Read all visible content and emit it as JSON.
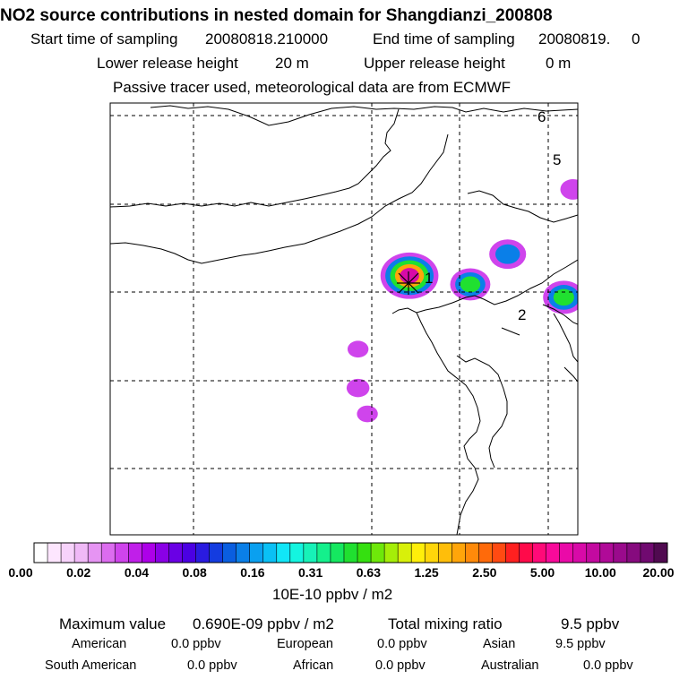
{
  "header": {
    "title": "NO2 source contributions in nested domain for Shangdianzi_200808",
    "start_label": "Start time of sampling",
    "start_value": "20080818.210000",
    "end_label": "End time of sampling",
    "end_value": "20080819.     0",
    "lower_label": "Lower release height",
    "lower_value": "20 m",
    "upper_label": "Upper release height",
    "upper_value": "0 m",
    "note": "Passive tracer used, meteorological data are from ECMWF"
  },
  "chart_data": {
    "type": "heatmap",
    "title": "NO2 source contributions in nested domain for Shangdianzi_200808",
    "region_labels": [
      "1",
      "2",
      "5",
      "6"
    ],
    "colorbar": {
      "ticks": [
        "0.00",
        "0.02",
        "0.04",
        "0.08",
        "0.16",
        "0.31",
        "0.63",
        "1.25",
        "2.50",
        "5.00",
        "10.00",
        "20.00"
      ],
      "unit": "10E-10 ppbv / m2",
      "colors": [
        "#ffffff",
        "#fde6fe",
        "#f7d2fb",
        "#f0b9f7",
        "#e694f3",
        "#dc6cef",
        "#cf44ec",
        "#c01fe9",
        "#ad00e8",
        "#8a00e6",
        "#6a00e5",
        "#4b00e3",
        "#2a1be0",
        "#143ce0",
        "#0a5ee0",
        "#0a7fe8",
        "#0aa0f0",
        "#0ac0f5",
        "#11e6f7",
        "#14f5e0",
        "#17f2b8",
        "#14f08c",
        "#15e860",
        "#20e030",
        "#35e010",
        "#6ee80a",
        "#a5ee08",
        "#d8f00a",
        "#ffef0a",
        "#ffd60a",
        "#ffbe0a",
        "#ffa50a",
        "#ff8a0a",
        "#ff6a0a",
        "#ff4a12",
        "#ff2020",
        "#ff0a4a",
        "#ff0a78",
        "#f80a9a",
        "#ea0aa8",
        "#d80aa8",
        "#c40aa0",
        "#b00a98",
        "#9a0a8c",
        "#860a7e",
        "#700a70",
        "#500a50"
      ],
      "levels": [
        0.0,
        0.02,
        0.04,
        0.08,
        0.16,
        0.31,
        0.63,
        1.25,
        2.5,
        5.0,
        10.0,
        20.0
      ]
    },
    "plumes": [
      {
        "lon_frac": 0.64,
        "lat_frac": 0.4,
        "value": 6.9,
        "label": "1"
      },
      {
        "lon_frac": 0.77,
        "lat_frac": 0.42,
        "value": 0.5
      },
      {
        "lon_frac": 0.85,
        "lat_frac": 0.35,
        "value": 0.3
      },
      {
        "lon_frac": 0.97,
        "lat_frac": 0.45,
        "value": 0.6,
        "label": "2"
      },
      {
        "lon_frac": 0.99,
        "lat_frac": 0.2,
        "value": 0.05
      },
      {
        "lon_frac": 0.53,
        "lat_frac": 0.66,
        "value": 0.03
      },
      {
        "lon_frac": 0.55,
        "lat_frac": 0.72,
        "value": 0.02
      },
      {
        "lon_frac": 0.53,
        "lat_frac": 0.57,
        "value": 0.02
      }
    ]
  },
  "footer": {
    "max_label": "Maximum value",
    "max_value": "0.690E-09 ppbv / m2",
    "total_label": "Total mixing ratio",
    "total_value": "9.5 ppbv",
    "american_label": "American",
    "american_value": "0.0 ppbv",
    "european_label": "European",
    "european_value": "0.0 ppbv",
    "asian_label": "Asian",
    "asian_value": "9.5 ppbv",
    "south_american_label": "South American",
    "south_american_value": "0.0 ppbv",
    "african_label": "African",
    "african_value": "0.0 ppbv",
    "australian_label": "Australian",
    "australian_value": "0.0 ppbv"
  }
}
